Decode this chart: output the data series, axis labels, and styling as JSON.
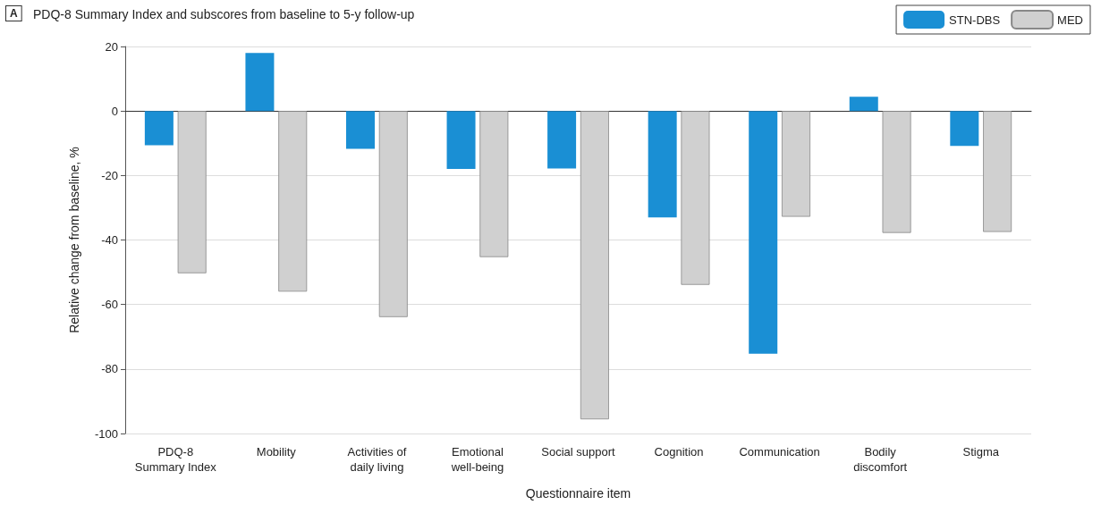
{
  "chart_data": {
    "type": "bar",
    "title": "PDQ-8 Summary Index and subscores from baseline to 5-y follow-up",
    "annotations": [
      "A"
    ],
    "xlabel": "Questionnaire item",
    "ylabel": "Relative change from baseline, %",
    "categories": [
      "PDQ-8\nSummary Index",
      "Mobility",
      "Activities of\ndaily living",
      "Emotional\nwell-being",
      "Social support",
      "Cognition",
      "Communication",
      "Bodily\ndiscomfort",
      "Stigma"
    ],
    "series": [
      {
        "name": "STN-DBS",
        "color": "#1a8fd4",
        "values": [
          -10.6,
          18,
          -11.7,
          -18,
          -17.8,
          -33,
          -75.3,
          4.4,
          -10.8
        ]
      },
      {
        "name": "MED",
        "color": "#d0d0d0",
        "values": [
          -50.3,
          -56,
          -63.9,
          -45.3,
          -95.6,
          -53.9,
          -32.8,
          -37.8,
          -37.5
        ]
      }
    ],
    "ylim": [
      -100,
      20
    ],
    "yticks": [
      -100,
      -80,
      -60,
      -40,
      -20,
      0,
      20
    ],
    "grid": "y",
    "legend": "top right"
  }
}
